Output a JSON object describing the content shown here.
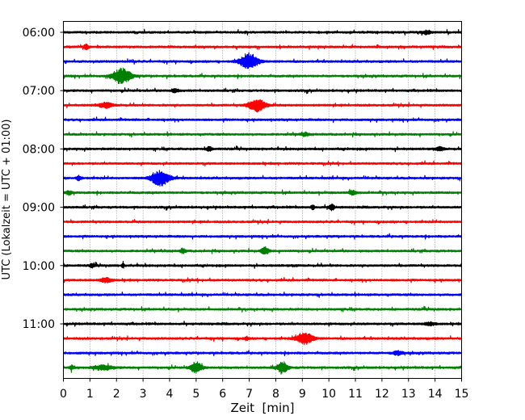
{
  "chart_data": {
    "type": "line",
    "xlabel": "Zeit  [min]",
    "ylabel": "UTC (Lokalzeit = UTC + 01:00)",
    "xlim": [
      0,
      15
    ],
    "x_ticks": [
      0,
      1,
      2,
      3,
      4,
      5,
      6,
      7,
      8,
      9,
      10,
      11,
      12,
      13,
      14,
      15
    ],
    "y_start": "06:00",
    "trace_interval_min": 15,
    "trace_count": 24,
    "y_tick_labels": [
      {
        "trace": 0,
        "label": "06:00"
      },
      {
        "trace": 4,
        "label": "07:00"
      },
      {
        "trace": 8,
        "label": "08:00"
      },
      {
        "trace": 12,
        "label": "09:00"
      },
      {
        "trace": 16,
        "label": "10:00"
      },
      {
        "trace": 20,
        "label": "11:00"
      }
    ],
    "trace_colors": [
      "#000000",
      "#ff0000",
      "#0000ff",
      "#008000"
    ],
    "grid": "vertical dotted",
    "events": [
      {
        "trace": 0,
        "t": 13.7,
        "amp": 0.25,
        "dur": 0.2
      },
      {
        "trace": 1,
        "t": 0.85,
        "amp": 0.3,
        "dur": 0.15
      },
      {
        "trace": 2,
        "t": 7.0,
        "amp": 1.0,
        "dur": 0.5
      },
      {
        "trace": 3,
        "t": 2.2,
        "amp": 1.0,
        "dur": 0.5
      },
      {
        "trace": 4,
        "t": 4.2,
        "amp": 0.2,
        "dur": 0.2
      },
      {
        "trace": 5,
        "t": 7.3,
        "amp": 0.85,
        "dur": 0.45
      },
      {
        "trace": 5,
        "t": 1.6,
        "amp": 0.3,
        "dur": 0.4
      },
      {
        "trace": 7,
        "t": 9.1,
        "amp": 0.2,
        "dur": 0.2
      },
      {
        "trace": 8,
        "t": 5.5,
        "amp": 0.3,
        "dur": 0.15
      },
      {
        "trace": 8,
        "t": 14.2,
        "amp": 0.25,
        "dur": 0.2
      },
      {
        "trace": 10,
        "t": 0.6,
        "amp": 0.3,
        "dur": 0.15
      },
      {
        "trace": 10,
        "t": 3.65,
        "amp": 1.0,
        "dur": 0.5
      },
      {
        "trace": 11,
        "t": 0.2,
        "amp": 0.3,
        "dur": 0.15
      },
      {
        "trace": 11,
        "t": 10.9,
        "amp": 0.3,
        "dur": 0.2
      },
      {
        "trace": 12,
        "t": 10.1,
        "amp": 0.4,
        "dur": 0.15
      },
      {
        "trace": 12,
        "t": 9.4,
        "amp": 0.3,
        "dur": 0.1
      },
      {
        "trace": 15,
        "t": 4.5,
        "amp": 0.3,
        "dur": 0.15
      },
      {
        "trace": 15,
        "t": 7.6,
        "amp": 0.5,
        "dur": 0.2
      },
      {
        "trace": 16,
        "t": 2.25,
        "amp": 0.5,
        "dur": 0.05
      },
      {
        "trace": 16,
        "t": 1.1,
        "amp": 0.25,
        "dur": 0.15
      },
      {
        "trace": 17,
        "t": 1.6,
        "amp": 0.3,
        "dur": 0.3
      },
      {
        "trace": 20,
        "t": 13.8,
        "amp": 0.2,
        "dur": 0.3
      },
      {
        "trace": 21,
        "t": 9.1,
        "amp": 0.8,
        "dur": 0.45
      },
      {
        "trace": 21,
        "t": 6.9,
        "amp": 0.25,
        "dur": 0.1
      },
      {
        "trace": 22,
        "t": 12.6,
        "amp": 0.3,
        "dur": 0.25
      },
      {
        "trace": 23,
        "t": 5.0,
        "amp": 0.75,
        "dur": 0.3
      },
      {
        "trace": 23,
        "t": 8.25,
        "amp": 0.7,
        "dur": 0.3
      },
      {
        "trace": 23,
        "t": 1.5,
        "amp": 0.3,
        "dur": 0.5
      },
      {
        "trace": 23,
        "t": 0.3,
        "amp": 0.3,
        "dur": 0.1
      }
    ]
  }
}
